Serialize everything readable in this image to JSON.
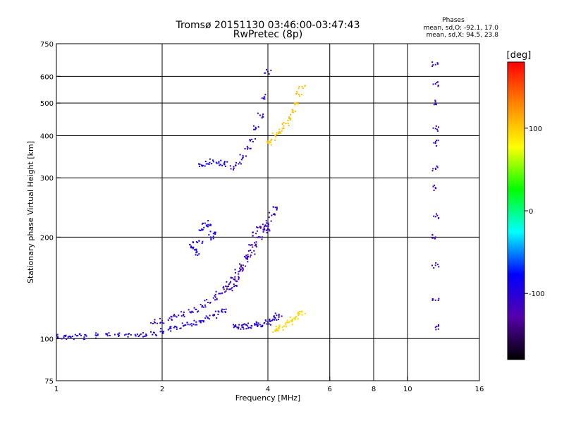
{
  "chart_data": {
    "type": "scatter",
    "title": "Tromsø 20151130 03:46:00-03:47:43",
    "subtitle": "RwPretec (8p)",
    "xlabel": "Frequency [MHz]",
    "ylabel": "Stationary phase Virtual Height [km]",
    "xscale": "log",
    "yscale": "log",
    "xlim": [
      1,
      16
    ],
    "ylim": [
      75,
      750
    ],
    "x_ticks": [
      1,
      2,
      4,
      6,
      8,
      10,
      16
    ],
    "x_tick_labels": [
      "1",
      "2",
      "4",
      "6",
      "8",
      "10",
      "16"
    ],
    "y_ticks": [
      75,
      100,
      200,
      300,
      400,
      500,
      600,
      750
    ],
    "y_tick_labels": [
      "75",
      "100",
      "200",
      "300",
      "400",
      "500",
      "600",
      "750"
    ],
    "x_grid": [
      2,
      4,
      6,
      8,
      10
    ],
    "y_grid": [
      100,
      200,
      300,
      400,
      500,
      600
    ],
    "grid": true,
    "stats": {
      "heading": "Phases",
      "line_o": "mean, sd,O: -92.1, 17.0",
      "line_x": "mean, sd,X:  94.5, 23.8"
    },
    "colorbar": {
      "unit": "[deg]",
      "range": [
        -180,
        180
      ],
      "ticks": [
        100,
        0,
        -100
      ],
      "tick_labels": [
        "100",
        "0",
        "-100"
      ],
      "colors": [
        "#ff0000",
        "#ff8800",
        "#ffff00",
        "#00ff00",
        "#00ffff",
        "#0000ff",
        "#5500aa",
        "#000000"
      ]
    },
    "series": [
      {
        "trace": "lower_o",
        "phase": -95,
        "x": [
          1.0,
          1.05,
          1.1,
          1.15,
          1.2,
          1.3,
          1.4,
          1.5,
          1.6,
          1.7,
          1.8,
          1.9,
          2.0,
          2.1,
          2.2,
          2.3,
          2.4,
          2.5,
          2.6,
          2.7,
          2.8,
          2.9,
          3.0
        ],
        "y": [
          102,
          101,
          101,
          102,
          101,
          102,
          102,
          103,
          103,
          103,
          103,
          104,
          105,
          107,
          108,
          109,
          110,
          112,
          113,
          115,
          117,
          120,
          122
        ]
      },
      {
        "trace": "lower_x",
        "phase": -110,
        "x": [
          1.9,
          2.0,
          2.1,
          2.2,
          2.3,
          2.4,
          2.5,
          2.6,
          2.7,
          2.8,
          2.9,
          3.0,
          3.1,
          3.2,
          3.3,
          3.4,
          3.5,
          3.6,
          3.7,
          3.8,
          3.9,
          4.0,
          4.1,
          4.2
        ],
        "y": [
          112,
          113,
          115,
          116,
          118,
          120,
          122,
          125,
          128,
          132,
          136,
          140,
          145,
          150,
          158,
          165,
          172,
          180,
          190,
          200,
          210,
          220,
          232,
          245
        ]
      },
      {
        "trace": "e_trace",
        "phase": -100,
        "x": [
          3.2,
          3.3,
          3.4,
          3.5,
          3.6,
          3.7,
          3.8,
          3.9,
          4.0,
          4.1,
          4.2,
          4.3
        ],
        "y": [
          108,
          108,
          108,
          109,
          109,
          110,
          110,
          111,
          112,
          113,
          115,
          118
        ]
      },
      {
        "trace": "f_low",
        "phase": -90,
        "x": [
          2.4,
          2.45,
          2.5,
          2.55,
          2.6,
          2.65,
          2.7,
          2.75,
          2.8
        ],
        "y": [
          190,
          185,
          180,
          195,
          210,
          220,
          215,
          200,
          205
        ]
      },
      {
        "trace": "f_mid",
        "phase": -115,
        "x": [
          3.1,
          3.2,
          3.3,
          3.4,
          3.5,
          3.6,
          3.7,
          3.8,
          3.9,
          4.0
        ],
        "y": [
          140,
          145,
          150,
          160,
          175,
          190,
          205,
          215,
          213,
          212
        ]
      },
      {
        "trace": "f2_o",
        "phase": -105,
        "x": [
          3.2,
          3.3,
          3.4,
          3.5,
          3.6,
          3.7,
          3.8,
          3.9,
          4.0
        ],
        "y": [
          320,
          330,
          345,
          365,
          390,
          420,
          460,
          520,
          620
        ]
      },
      {
        "trace": "f_shelf",
        "phase": -85,
        "x": [
          2.6,
          2.7,
          2.8,
          2.9,
          3.0
        ],
        "y": [
          325,
          330,
          335,
          332,
          330
        ]
      },
      {
        "trace": "x_high",
        "phase": 105,
        "x": [
          4.0,
          4.1,
          4.2,
          4.3,
          4.4,
          4.5,
          4.6,
          4.7,
          4.8,
          4.9,
          5.0
        ],
        "y": [
          380,
          390,
          400,
          410,
          420,
          435,
          450,
          470,
          500,
          530,
          560
        ]
      },
      {
        "trace": "x_low",
        "phase": 95,
        "x": [
          4.2,
          4.3,
          4.4,
          4.5,
          4.6,
          4.7,
          4.8,
          4.9,
          5.0
        ],
        "y": [
          106,
          107,
          108,
          110,
          112,
          114,
          116,
          118,
          120
        ]
      },
      {
        "trace": "scatter_high_f",
        "phase": -110,
        "x": [
          12,
          12,
          12,
          12,
          12,
          12,
          12,
          12,
          12,
          12,
          12,
          12
        ],
        "y": [
          108,
          130,
          165,
          200,
          230,
          280,
          320,
          380,
          420,
          500,
          570,
          650
        ]
      }
    ]
  }
}
